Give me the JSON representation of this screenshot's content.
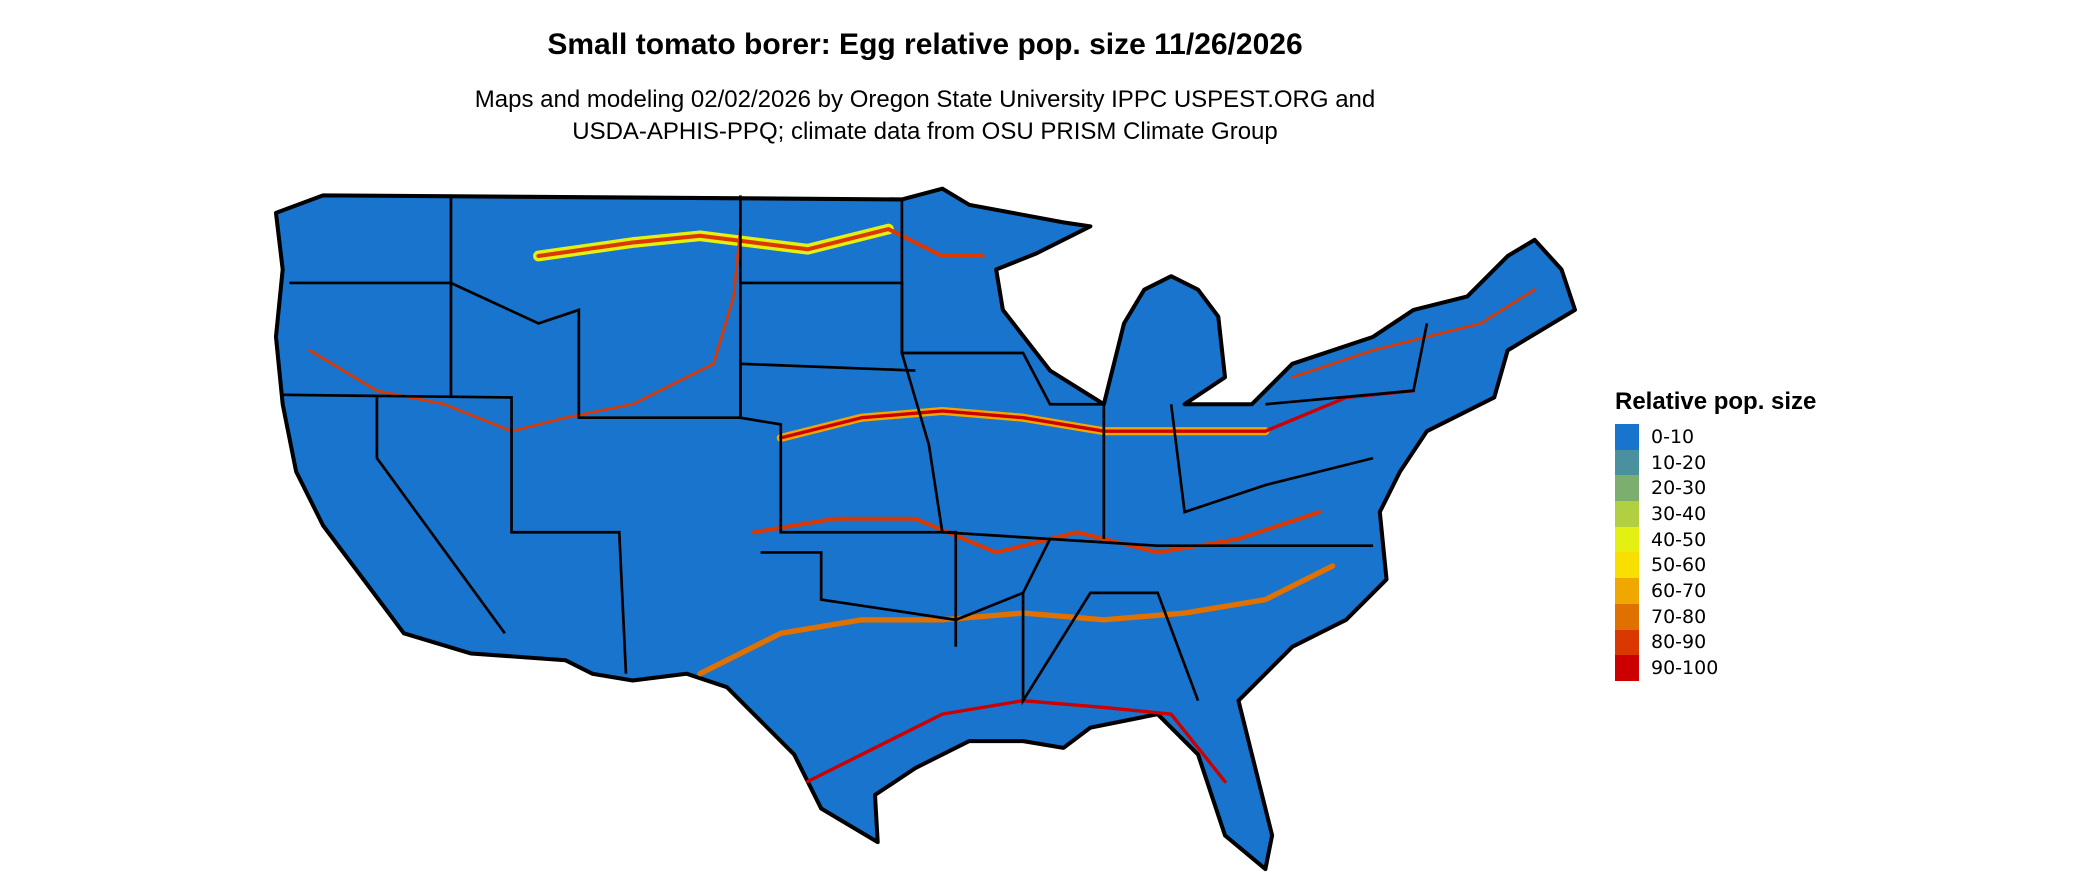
{
  "title": "Small tomato borer: Egg relative pop. size 11/26/2026",
  "subtitle_line1": "Maps and modeling 02/02/2026 by Oregon State University IPPC USPEST.ORG and",
  "subtitle_line2": "USDA-APHIS-PPQ; climate data from OSU PRISM Climate Group",
  "legend": {
    "title": "Relative pop. size",
    "items": [
      {
        "label": "0-10",
        "color": "#1874CD"
      },
      {
        "label": "10-20",
        "color": "#4A909E"
      },
      {
        "label": "20-30",
        "color": "#7CAE70"
      },
      {
        "label": "30-40",
        "color": "#B0D042"
      },
      {
        "label": "40-50",
        "color": "#E3F012"
      },
      {
        "label": "50-60",
        "color": "#F8DF00"
      },
      {
        "label": "60-70",
        "color": "#F0A800"
      },
      {
        "label": "70-80",
        "color": "#E07000"
      },
      {
        "label": "80-90",
        "color": "#DA3800"
      },
      {
        "label": "90-100",
        "color": "#CC0000"
      }
    ]
  }
}
